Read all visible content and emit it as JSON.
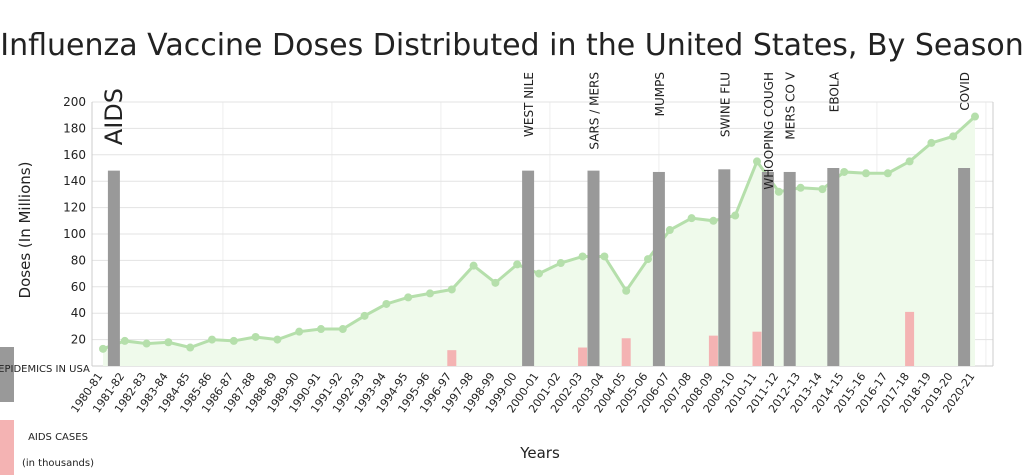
{
  "chart_data": {
    "type": "line",
    "title": "Influenza Vaccine Doses Distributed in the United States, By Season",
    "x_label": "Years",
    "y_label": "Doses (In Millions)",
    "categories": [
      "1980-81",
      "1981-82",
      "1982-83",
      "1983-84",
      "1984-85",
      "1985-86",
      "1986-87",
      "1987-88",
      "1988-89",
      "1989-90",
      "1990-91",
      "1991-92",
      "1992-93",
      "1993-94",
      "1994-95",
      "1995-96",
      "1996-97",
      "1997-98",
      "1998-99",
      "1999-00",
      "2000-01",
      "2001-02",
      "2002-03",
      "2003-04",
      "2004-05",
      "2005-06",
      "2006-07",
      "2007-08",
      "2008-09",
      "2009-10",
      "2010-11",
      "2011-12",
      "2012-13",
      "2013-14",
      "2014-15",
      "2015-16",
      "2016-17",
      "2017-18",
      "2018-19",
      "2019-20",
      "2020-21"
    ],
    "series": [
      {
        "name": "Doses",
        "color": "#b5dfab",
        "values": [
          13,
          19,
          17,
          18,
          14,
          20,
          19,
          22,
          20,
          26,
          28,
          28,
          38,
          47,
          52,
          55,
          58,
          76,
          63,
          77,
          70,
          78,
          83,
          83,
          57,
          81,
          103,
          112,
          110,
          114,
          155,
          132,
          135,
          134,
          147,
          146,
          146,
          155,
          169,
          174,
          189
        ]
      }
    ],
    "epidemics": {
      "name": "EPIDEMICS IN USA",
      "color": "#999999",
      "items": [
        {
          "label": "AIDS",
          "season": "1980-81",
          "value": 148
        },
        {
          "label": "WEST NILE",
          "season": "1999-00",
          "value": 148
        },
        {
          "label": "SARS / MERS",
          "season": "2002-03",
          "value": 148
        },
        {
          "label": "MUMPS",
          "season": "2005-06",
          "value": 147
        },
        {
          "label": "SWINE FLU",
          "season": "2008-09",
          "value": 149
        },
        {
          "label": "WHOOPING COUGH",
          "season": "2010-11",
          "value": 147
        },
        {
          "label": "MERS CO V",
          "season": "2011-12",
          "value": 147
        },
        {
          "label": "EBOLA",
          "season": "2013-14",
          "value": 150
        },
        {
          "label": "COVID",
          "season": "2019-20",
          "value": 150
        }
      ]
    },
    "aids_cases": {
      "name": "AIDS CASES",
      "unit": "(in thousands)",
      "color": "#f4b3b3",
      "items": [
        {
          "season": "1996-97",
          "value": 12
        },
        {
          "season": "2002-03",
          "value": 14
        },
        {
          "season": "2004-05",
          "value": 21
        },
        {
          "season": "2008-09",
          "value": 23
        },
        {
          "season": "2010-11",
          "value": 26
        },
        {
          "season": "2017-18",
          "value": 41
        }
      ]
    },
    "ylim": [
      0,
      200
    ],
    "yticks": [
      20,
      40,
      60,
      80,
      100,
      120,
      140,
      160,
      180,
      200
    ],
    "grid": true
  }
}
